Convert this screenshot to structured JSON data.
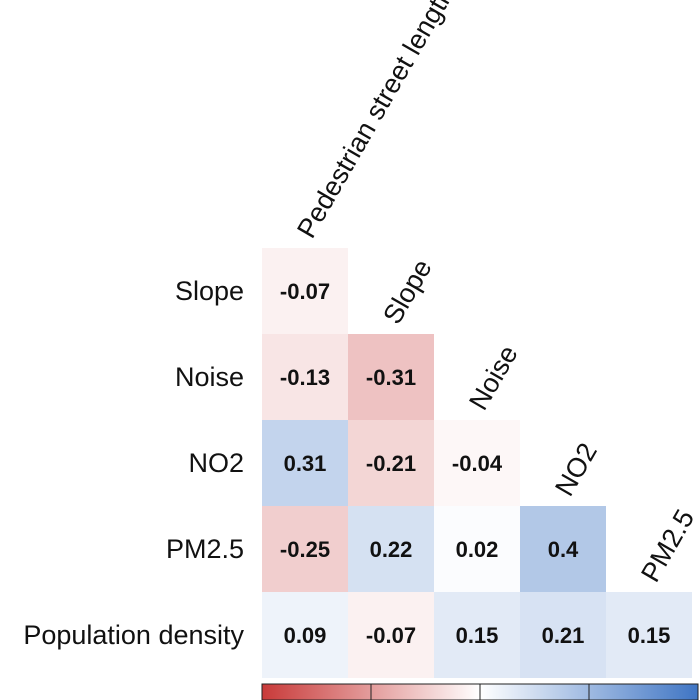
{
  "chart_data": {
    "type": "heatmap",
    "title": "",
    "subtitle": "",
    "xlabel": "",
    "ylabel": "",
    "column_labels": [
      "Pedestrian street length",
      "Slope",
      "Noise",
      "NO2",
      "PM2.5"
    ],
    "row_labels": [
      "Slope",
      "Noise",
      "NO2",
      "PM2.5",
      "Population density"
    ],
    "values": [
      [
        -0.07,
        null,
        null,
        null,
        null
      ],
      [
        -0.13,
        -0.31,
        null,
        null,
        null
      ],
      [
        0.31,
        -0.21,
        -0.04,
        null,
        null
      ],
      [
        -0.25,
        0.22,
        0.02,
        0.4,
        null
      ],
      [
        0.09,
        -0.07,
        0.15,
        0.21,
        0.15
      ]
    ],
    "value_labels": [
      [
        "-0.07",
        "",
        "",
        "",
        ""
      ],
      [
        "-0.13",
        "-0.31",
        "",
        "",
        ""
      ],
      [
        "0.31",
        "-0.21",
        "-0.04",
        "",
        ""
      ],
      [
        "-0.25",
        "0.22",
        "0.02",
        "0.4",
        ""
      ],
      [
        "0.09",
        "-0.07",
        "0.15",
        "0.21",
        "0.15"
      ]
    ],
    "color_scale": {
      "min": -1,
      "max": 1,
      "low_color": "#c83a39",
      "mid_color": "#ffffff",
      "high_color": "#3f75c4"
    },
    "layout": "lower-triangle",
    "grid": false,
    "legend": "colorbar-bottom"
  }
}
